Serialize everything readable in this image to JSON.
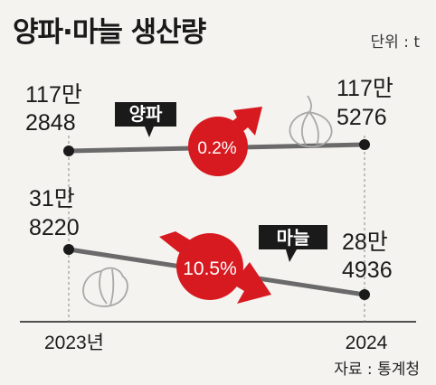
{
  "header": {
    "title": "양파·마늘 생산량",
    "unit": "단위 : t"
  },
  "footer": {
    "source": "자료 : 통계청"
  },
  "colors": {
    "line": "#6a6a6a",
    "accent_red": "#d71920",
    "label_bg": "#1a1a1a",
    "background": "#f4f3ef"
  },
  "chart_data": {
    "type": "line",
    "unit": "t",
    "categories": [
      "2023년",
      "2024"
    ],
    "series": [
      {
        "name": "양파",
        "values": [
          1172848,
          1175276
        ],
        "start_label": [
          "117만",
          "2848"
        ],
        "end_label": [
          "117만",
          "5276"
        ],
        "change": "0.2%",
        "direction": "up",
        "icon": "onion-icon"
      },
      {
        "name": "마늘",
        "values": [
          318220,
          284936
        ],
        "start_label": [
          "31만",
          "8220"
        ],
        "end_label": [
          "28만",
          "4936"
        ],
        "change": "10.5%",
        "direction": "down",
        "icon": "garlic-icon"
      }
    ]
  }
}
